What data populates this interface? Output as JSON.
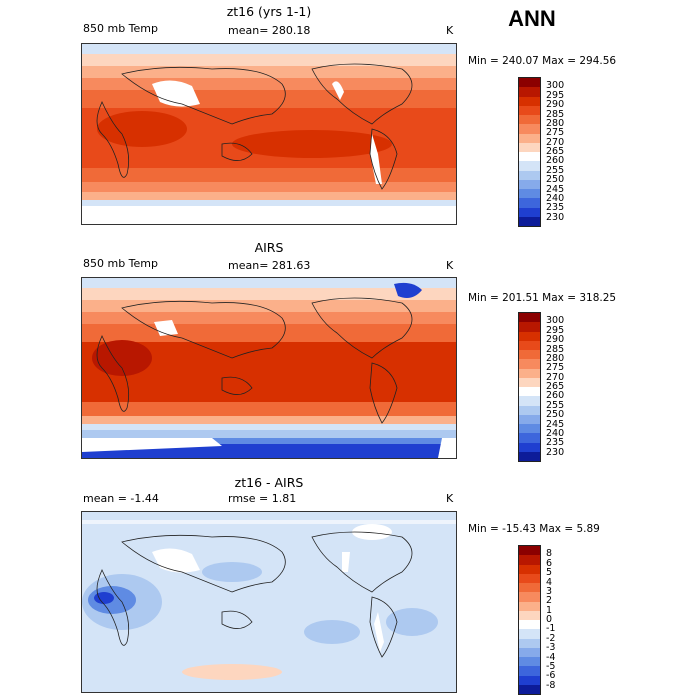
{
  "season": "ANN",
  "panels": [
    {
      "title": "zt16 (yrs 1-1)",
      "left_label": "850 mb Temp",
      "stat": "mean= 280.18",
      "stat2": "",
      "units": "K",
      "minmax": "Min = 240.07  Max = 294.56",
      "colorbar": {
        "labels": [
          "300",
          "295",
          "290",
          "285",
          "280",
          "275",
          "270",
          "265",
          "260",
          "255",
          "250",
          "245",
          "240",
          "235",
          "230"
        ],
        "colors": [
          "#8b0000",
          "#b81700",
          "#d73000",
          "#e84a1a",
          "#f06a38",
          "#f78a5e",
          "#fbb08a",
          "#fdd6bf",
          "#ffffff",
          "#d4e4f7",
          "#adc9f0",
          "#86aaea",
          "#5f8be3",
          "#3d66dc",
          "#1f3fd0",
          "#0d1c99"
        ]
      }
    },
    {
      "title": "AIRS",
      "left_label": "850 mb Temp",
      "stat": "mean= 281.63",
      "stat2": "",
      "units": "K",
      "minmax": "Min = 201.51  Max = 318.25",
      "colorbar": {
        "labels": [
          "300",
          "295",
          "290",
          "285",
          "280",
          "275",
          "270",
          "265",
          "260",
          "255",
          "250",
          "245",
          "240",
          "235",
          "230"
        ],
        "colors": [
          "#8b0000",
          "#b81700",
          "#d73000",
          "#e84a1a",
          "#f06a38",
          "#f78a5e",
          "#fbb08a",
          "#fdd6bf",
          "#ffffff",
          "#d4e4f7",
          "#adc9f0",
          "#86aaea",
          "#5f8be3",
          "#3d66dc",
          "#1f3fd0",
          "#0d1c99"
        ]
      }
    },
    {
      "title": "zt16 - AIRS",
      "left_label": "mean =   -1.44",
      "stat": "rmse =    1.81",
      "stat2": "",
      "units": "K",
      "minmax": "Min = -15.43  Max =    5.89",
      "colorbar": {
        "labels": [
          "8",
          "6",
          "5",
          "4",
          "3",
          "2",
          "1",
          "0",
          "-1",
          "-2",
          "-3",
          "-4",
          "-5",
          "-6",
          "-8"
        ],
        "colors": [
          "#8b0000",
          "#b81700",
          "#d73000",
          "#e84a1a",
          "#f06a38",
          "#f78a5e",
          "#fbb08a",
          "#fdd6bf",
          "#ffffff",
          "#d4e4f7",
          "#adc9f0",
          "#86aaea",
          "#5f8be3",
          "#3d66dc",
          "#1f3fd0",
          "#0d1c99"
        ]
      }
    }
  ],
  "chart_data": {
    "type": "heatmap",
    "title": "ANN",
    "maps": [
      {
        "title": "zt16 (yrs 1-1)",
        "variable": "850 mb Temp",
        "mean": 280.18,
        "units": "K",
        "min": 240.07,
        "max": 294.56,
        "levels": [
          230,
          235,
          240,
          245,
          250,
          255,
          260,
          265,
          270,
          275,
          280,
          285,
          290,
          295,
          300
        ]
      },
      {
        "title": "AIRS",
        "variable": "850 mb Temp",
        "mean": 281.63,
        "units": "K",
        "min": 201.51,
        "max": 318.25,
        "levels": [
          230,
          235,
          240,
          245,
          250,
          255,
          260,
          265,
          270,
          275,
          280,
          285,
          290,
          295,
          300
        ]
      },
      {
        "title": "zt16 - AIRS",
        "mean": -1.44,
        "rmse": 1.81,
        "units": "K",
        "min": -15.43,
        "max": 5.89,
        "levels": [
          -8,
          -6,
          -5,
          -4,
          -3,
          -2,
          -1,
          0,
          1,
          2,
          3,
          4,
          5,
          6,
          8
        ]
      }
    ]
  }
}
